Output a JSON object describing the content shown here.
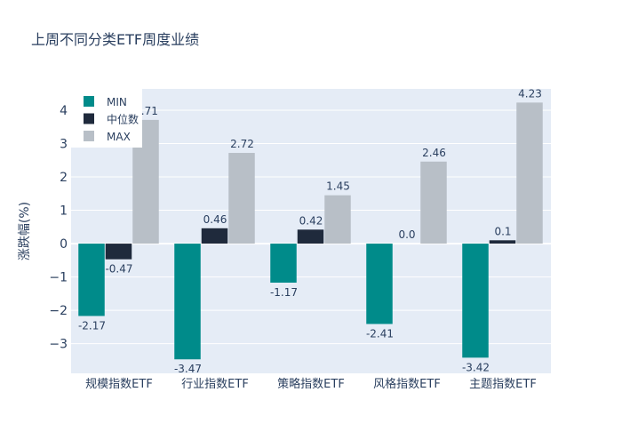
{
  "chart_data": {
    "type": "bar",
    "title": "上周不同分类ETF周度业绩",
    "xlabel": "",
    "ylabel": "涨跌幅(%)",
    "ylim": [
      -3.89,
      4.64
    ],
    "yticks": [
      -3,
      -2,
      -1,
      0,
      1,
      2,
      3,
      4
    ],
    "ytick_labels": [
      "−3",
      "−2",
      "−1",
      "0",
      "1",
      "2",
      "3",
      "4"
    ],
    "grid": true,
    "legend_position": "top-left",
    "categories": [
      "规模指数ETF",
      "行业指数ETF",
      "策略指数ETF",
      "风格指数ETF",
      "主题指数ETF"
    ],
    "series": [
      {
        "name": "MIN",
        "color": "#008b8a",
        "values": [
          -2.17,
          -3.47,
          -1.17,
          -2.41,
          -3.42
        ],
        "labels": [
          "-2.17",
          "-3.47",
          "-1.17",
          "-2.41",
          "-3.42"
        ]
      },
      {
        "name": "中位数",
        "color": "#1f2a3c",
        "values": [
          -0.47,
          0.46,
          0.42,
          0.0,
          0.1
        ],
        "labels": [
          "-0.47",
          "0.46",
          "0.42",
          "0.0",
          "0.1"
        ]
      },
      {
        "name": "MAX",
        "color": "#b8bfc7",
        "values": [
          3.71,
          2.72,
          1.45,
          2.46,
          4.23
        ],
        "labels": [
          "3.71",
          "2.72",
          "1.45",
          "2.46",
          "4.23"
        ]
      }
    ]
  }
}
